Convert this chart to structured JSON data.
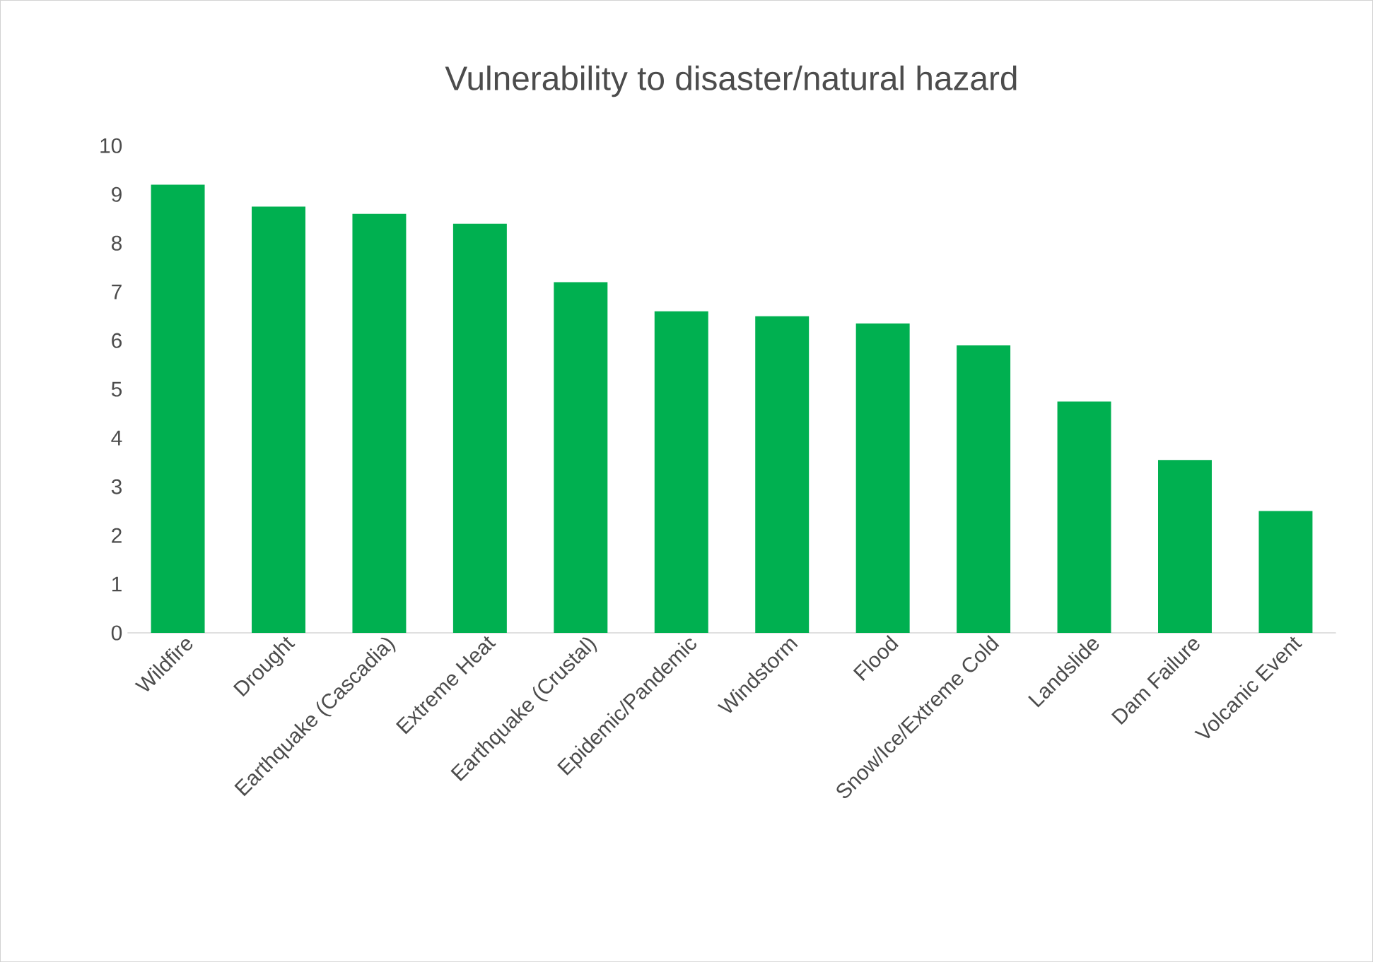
{
  "chart_data": {
    "type": "bar",
    "title": "Vulnerability to disaster/natural hazard",
    "categories": [
      "Wildfire",
      "Drought",
      "Earthquake (Cascadia)",
      "Extreme Heat",
      "Earthquake (Crustal)",
      "Epidemic/Pandemic",
      "Windstorm",
      "Flood",
      "Snow/Ice/Extreme Cold",
      "Landslide",
      "Dam Failure",
      "Volcanic Event"
    ],
    "values": [
      9.2,
      8.75,
      8.6,
      8.4,
      7.2,
      6.6,
      6.5,
      6.35,
      5.9,
      4.75,
      3.55,
      2.5
    ],
    "color": "#00b050",
    "ylim": [
      0,
      10
    ],
    "yticks": [
      0,
      1,
      2,
      3,
      4,
      5,
      6,
      7,
      8,
      9,
      10
    ],
    "grid": false
  }
}
